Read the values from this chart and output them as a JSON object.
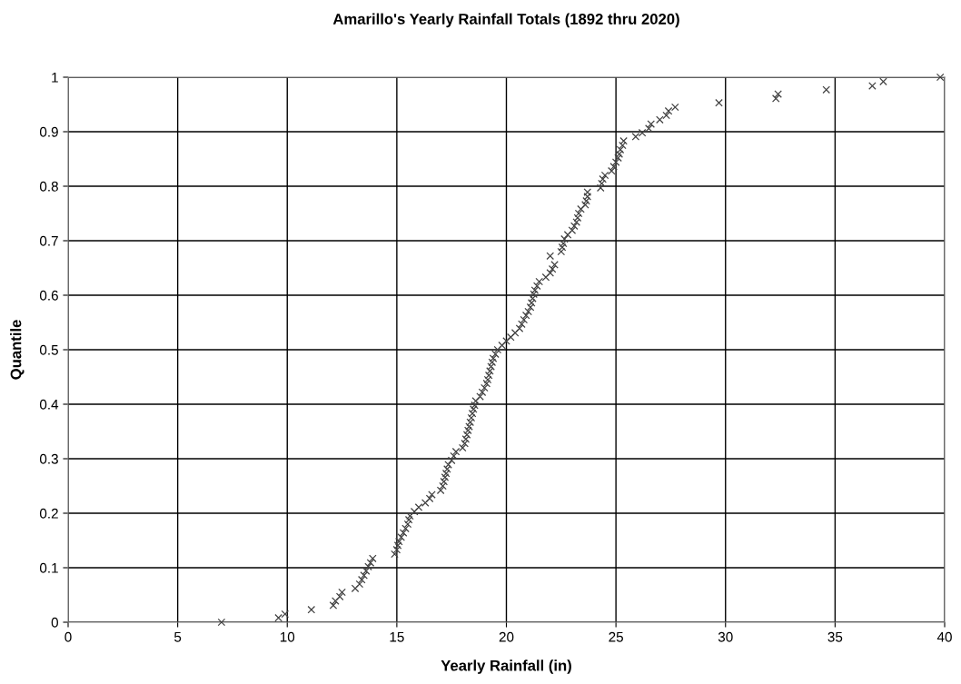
{
  "chart_data": {
    "type": "scatter",
    "title": "Amarillo's Yearly Rainfall Totals (1892 thru 2020)",
    "xlabel": "Yearly Rainfall (in)",
    "ylabel": "Quantile",
    "xlim": [
      0,
      40
    ],
    "xticks": [
      0,
      5,
      10,
      15,
      20,
      25,
      30,
      35,
      40
    ],
    "ylim": [
      0,
      1
    ],
    "yticks": [
      0,
      0.1,
      0.2,
      0.3,
      0.4,
      0.5,
      0.6,
      0.7,
      0.8,
      0.9,
      1
    ],
    "grid": true,
    "marker": "cross",
    "series": [
      {
        "color": "#404040",
        "x": [
          7.0,
          9.6,
          9.9,
          11.1,
          12.1,
          12.2,
          12.4,
          12.5,
          13.1,
          13.3,
          13.4,
          13.5,
          13.6,
          13.7,
          13.8,
          13.9,
          14.9,
          15.0,
          15.05,
          15.1,
          15.2,
          15.3,
          15.4,
          15.5,
          15.55,
          15.6,
          15.8,
          16.0,
          16.3,
          16.5,
          16.6,
          17.0,
          17.1,
          17.15,
          17.2,
          17.25,
          17.3,
          17.35,
          17.5,
          17.6,
          17.7,
          18.0,
          18.1,
          18.15,
          18.2,
          18.25,
          18.3,
          18.35,
          18.4,
          18.45,
          18.5,
          18.55,
          18.6,
          18.8,
          18.9,
          19.0,
          19.1,
          19.15,
          19.2,
          19.25,
          19.3,
          19.35,
          19.4,
          19.5,
          19.6,
          19.8,
          20.0,
          20.2,
          20.4,
          20.6,
          20.7,
          20.8,
          20.9,
          21.0,
          21.1,
          21.15,
          21.2,
          21.25,
          21.3,
          21.4,
          21.5,
          21.8,
          22.0,
          22.1,
          22.2,
          22.0,
          22.5,
          22.55,
          22.6,
          22.65,
          22.8,
          23.0,
          23.1,
          23.2,
          23.25,
          23.3,
          23.4,
          23.6,
          23.65,
          23.7,
          23.7,
          24.3,
          24.35,
          24.4,
          24.5,
          24.8,
          24.9,
          25.0,
          25.1,
          25.15,
          25.2,
          25.3,
          25.35,
          25.9,
          26.2,
          26.5,
          26.6,
          27.0,
          27.3,
          27.4,
          27.7,
          29.7,
          32.3,
          32.4,
          34.6,
          36.7,
          37.2,
          39.8
        ],
        "values": [
          0,
          0.008,
          0.015,
          0.023,
          0.031,
          0.039,
          0.047,
          0.055,
          0.062,
          0.07,
          0.078,
          0.086,
          0.094,
          0.102,
          0.109,
          0.117,
          0.125,
          0.133,
          0.141,
          0.148,
          0.156,
          0.164,
          0.172,
          0.18,
          0.188,
          0.195,
          0.203,
          0.211,
          0.219,
          0.227,
          0.234,
          0.242,
          0.25,
          0.258,
          0.266,
          0.273,
          0.281,
          0.289,
          0.297,
          0.305,
          0.313,
          0.32,
          0.328,
          0.336,
          0.344,
          0.352,
          0.359,
          0.367,
          0.375,
          0.383,
          0.391,
          0.398,
          0.406,
          0.414,
          0.422,
          0.43,
          0.438,
          0.445,
          0.453,
          0.461,
          0.469,
          0.477,
          0.484,
          0.492,
          0.5,
          0.508,
          0.516,
          0.523,
          0.531,
          0.539,
          0.547,
          0.555,
          0.563,
          0.57,
          0.578,
          0.586,
          0.594,
          0.602,
          0.609,
          0.617,
          0.625,
          0.633,
          0.641,
          0.648,
          0.656,
          0.672,
          0.68,
          0.688,
          0.695,
          0.703,
          0.711,
          0.719,
          0.727,
          0.734,
          0.742,
          0.75,
          0.758,
          0.766,
          0.773,
          0.781,
          0.789,
          0.797,
          0.805,
          0.813,
          0.82,
          0.828,
          0.836,
          0.844,
          0.852,
          0.859,
          0.867,
          0.875,
          0.883,
          0.891,
          0.898,
          0.906,
          0.914,
          0.922,
          0.93,
          0.938,
          0.945,
          0.953,
          0.961,
          0.969,
          0.977,
          0.984,
          0.992,
          1.0
        ]
      }
    ]
  }
}
